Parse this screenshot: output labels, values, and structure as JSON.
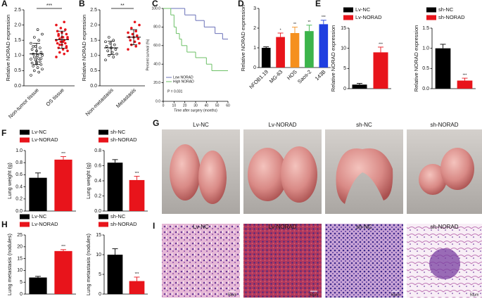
{
  "chart_data": [
    {
      "type": "strip",
      "panel": "A",
      "y_label": "Relative NORAD expression",
      "categories": [
        "Non-tumor tissue",
        "OS tissue"
      ],
      "colors": [
        "#000000",
        "#e8141b"
      ],
      "values": [
        [
          0.35,
          0.45,
          0.5,
          0.55,
          0.6,
          0.65,
          0.7,
          0.72,
          0.75,
          0.8,
          0.85,
          0.88,
          0.9,
          0.95,
          1.0,
          1.0,
          1.05,
          1.1,
          1.15,
          1.2,
          1.25,
          1.3,
          1.4,
          1.5,
          1.6,
          1.7,
          1.85,
          1.3,
          0.9,
          0.78
        ],
        [
          0.95,
          1.05,
          1.1,
          1.15,
          1.2,
          1.25,
          1.3,
          1.35,
          1.4,
          1.4,
          1.45,
          1.5,
          1.5,
          1.55,
          1.6,
          1.6,
          1.65,
          1.7,
          1.75,
          1.8,
          1.85,
          1.9,
          2.0,
          2.1,
          1.35,
          1.55,
          1.45,
          1.7,
          1.25,
          1.6
        ]
      ],
      "means": [
        1.05,
        1.52
      ],
      "sd": [
        0.35,
        0.28
      ],
      "significance": "***",
      "ylim": [
        0,
        2.5
      ],
      "yticks": [
        {
          "value": 0,
          "label": "0.0"
        },
        0.5,
        {
          "value": 1,
          "label": "1.0"
        },
        1.5,
        {
          "value": 2,
          "label": "2.0"
        },
        2.5
      ]
    },
    {
      "type": "strip",
      "panel": "B",
      "y_label": "Relative NORAD expression",
      "categories": [
        "Non-metastasis",
        "Metastasis"
      ],
      "colors": [
        "#000000",
        "#e8141b"
      ],
      "values": [
        [
          0.85,
          0.95,
          1.0,
          1.05,
          1.1,
          1.15,
          1.2,
          1.25,
          1.3,
          1.35,
          1.4,
          1.45,
          1.5,
          1.6
        ],
        [
          1.2,
          1.3,
          1.35,
          1.4,
          1.45,
          1.5,
          1.55,
          1.6,
          1.6,
          1.65,
          1.7,
          1.75,
          1.8,
          1.9,
          2.0,
          2.1
        ]
      ],
      "means": [
        1.25,
        1.6
      ],
      "sd": [
        0.22,
        0.25
      ],
      "significance": "**",
      "ylim": [
        0,
        2.5
      ],
      "yticks": [
        {
          "value": 0,
          "label": "0.0"
        },
        0.5,
        {
          "value": 1,
          "label": "1.0"
        },
        1.5,
        {
          "value": 2,
          "label": "2.0"
        },
        2.5
      ]
    },
    {
      "type": "survival",
      "panel": "C",
      "y_label": "Percent survival (%)",
      "x_label": "Time after surgery (months)",
      "series": [
        {
          "name": "Low NORAD",
          "color": "#6a70b8",
          "x": [
            0,
            20,
            30,
            38,
            48,
            55,
            60
          ],
          "values": [
            100,
            93,
            87,
            80,
            73,
            67,
            67
          ]
        },
        {
          "name": "High NORAD",
          "color": "#6cc066",
          "x": [
            0,
            7,
            10,
            12,
            15,
            17,
            22,
            30,
            40,
            45,
            60
          ],
          "values": [
            100,
            93,
            80,
            73,
            67,
            60,
            53,
            47,
            40,
            33,
            33
          ]
        }
      ],
      "annotation": "P = 0.031",
      "xlim": [
        0,
        60
      ],
      "xticks": [
        0,
        10,
        20,
        30,
        40,
        50,
        60
      ],
      "ylim": [
        0,
        100
      ],
      "yticks": [
        {
          "value": 0,
          "label": "0.0"
        },
        {
          "value": 20,
          "label": "20.0"
        },
        {
          "value": 40,
          "label": "40.0"
        },
        {
          "value": 60,
          "label": "60.0"
        },
        {
          "value": 80,
          "label": "80.0"
        },
        {
          "value": 100,
          "label": "100.0"
        }
      ]
    },
    {
      "type": "bar",
      "panel": "D",
      "y_label": "Relative NORAD expression",
      "x_labels": true,
      "categories": [
        "hFOB1.19",
        "MG-63",
        "HOS",
        "Saos-2",
        "143B"
      ],
      "colors": [
        "#000000",
        "#e8141b",
        "#f5901e",
        "#3cb44b",
        "#1f3fe0"
      ],
      "values": [
        1.0,
        1.55,
        1.75,
        1.85,
        2.2
      ],
      "errors": [
        0.05,
        0.2,
        0.3,
        0.3,
        0.2
      ],
      "annotations": [
        null,
        "*",
        "**",
        "**",
        "***"
      ],
      "ylim": [
        0,
        3
      ],
      "yticks": [
        0,
        1,
        2,
        3
      ]
    },
    {
      "type": "bar",
      "panel": "E",
      "y_label": "Relative NORAD expression",
      "legend": true,
      "categories": [
        "Lv-NC",
        "Lv-NORAD"
      ],
      "colors": [
        "#000000",
        "#e8141b"
      ],
      "values": [
        1,
        9
      ],
      "errors": [
        0.3,
        1.3
      ],
      "annotations": [
        null,
        "***"
      ],
      "ylim": [
        0,
        15
      ],
      "yticks": [
        0,
        5,
        10,
        15
      ]
    },
    {
      "type": "bar",
      "y_label": "Relative NORAD expression",
      "legend": true,
      "categories": [
        "sh-NC",
        "sh-NORAD"
      ],
      "colors": [
        "#000000",
        "#e8141b"
      ],
      "values": [
        1.0,
        0.2
      ],
      "errors": [
        0.1,
        0.06
      ],
      "annotations": [
        null,
        "***"
      ],
      "ylim": [
        0,
        1.5
      ],
      "yticks": [
        {
          "value": 0,
          "label": "0.0"
        },
        0.5,
        {
          "value": 1,
          "label": "1.0"
        },
        1.5
      ]
    },
    {
      "type": "bar",
      "panel": "F",
      "y_label": "Lung weight (g)",
      "legend": true,
      "categories": [
        "Lv-NC",
        "Lv-NORAD"
      ],
      "colors": [
        "#000000",
        "#e8141b"
      ],
      "values": [
        0.55,
        0.85
      ],
      "errors": [
        0.08,
        0.05
      ],
      "annotations": [
        null,
        "***"
      ],
      "ylim": [
        0,
        1
      ],
      "yticks": [
        {
          "value": 0,
          "label": "0.0"
        },
        0.2,
        0.4,
        0.6,
        0.8,
        {
          "value": 1,
          "label": "1.0"
        }
      ]
    },
    {
      "type": "bar",
      "y_label": "Lung weight (g)",
      "legend": true,
      "categories": [
        "sh-NC",
        "sh-NORAD"
      ],
      "colors": [
        "#000000",
        "#e8141b"
      ],
      "values": [
        0.64,
        0.41
      ],
      "errors": [
        0.04,
        0.05
      ],
      "annotations": [
        null,
        "***"
      ],
      "ylim": [
        0,
        0.8
      ],
      "yticks": [
        {
          "value": 0,
          "label": "0.0"
        },
        0.2,
        0.4,
        0.6,
        0.8
      ]
    },
    {
      "type": "bar",
      "panel": "H",
      "y_label": "Lung metastasis (nodules)",
      "legend": true,
      "categories": [
        "Lv-NC",
        "Lv-NORAD"
      ],
      "colors": [
        "#000000",
        "#e8141b"
      ],
      "values": [
        7,
        18.2
      ],
      "errors": [
        0.5,
        0.6
      ],
      "annotations": [
        null,
        "***"
      ],
      "ylim": [
        0,
        25
      ],
      "yticks": [
        0,
        5,
        10,
        15,
        20,
        25
      ]
    },
    {
      "type": "bar",
      "y_label": "Lung metastasis (nodules)",
      "legend": true,
      "categories": [
        "sh-NC",
        "sh-NORAD"
      ],
      "colors": [
        "#000000",
        "#e8141b"
      ],
      "values": [
        10,
        3.3
      ],
      "errors": [
        1.5,
        1.0
      ],
      "annotations": [
        null,
        "***"
      ],
      "ylim": [
        0,
        15
      ],
      "yticks": [
        0,
        5,
        10,
        15
      ]
    }
  ],
  "photos": {
    "panel": "G",
    "labels": [
      "Lv-NC",
      "Lv-NORAD",
      "sh-NC",
      "sh-NORAD"
    ]
  },
  "histology": {
    "panel": "I",
    "labels": [
      "Lv-NC",
      "Lv-NORAD",
      "sh-NC",
      "sh-NORAD"
    ],
    "scale_bar": "50μm"
  }
}
